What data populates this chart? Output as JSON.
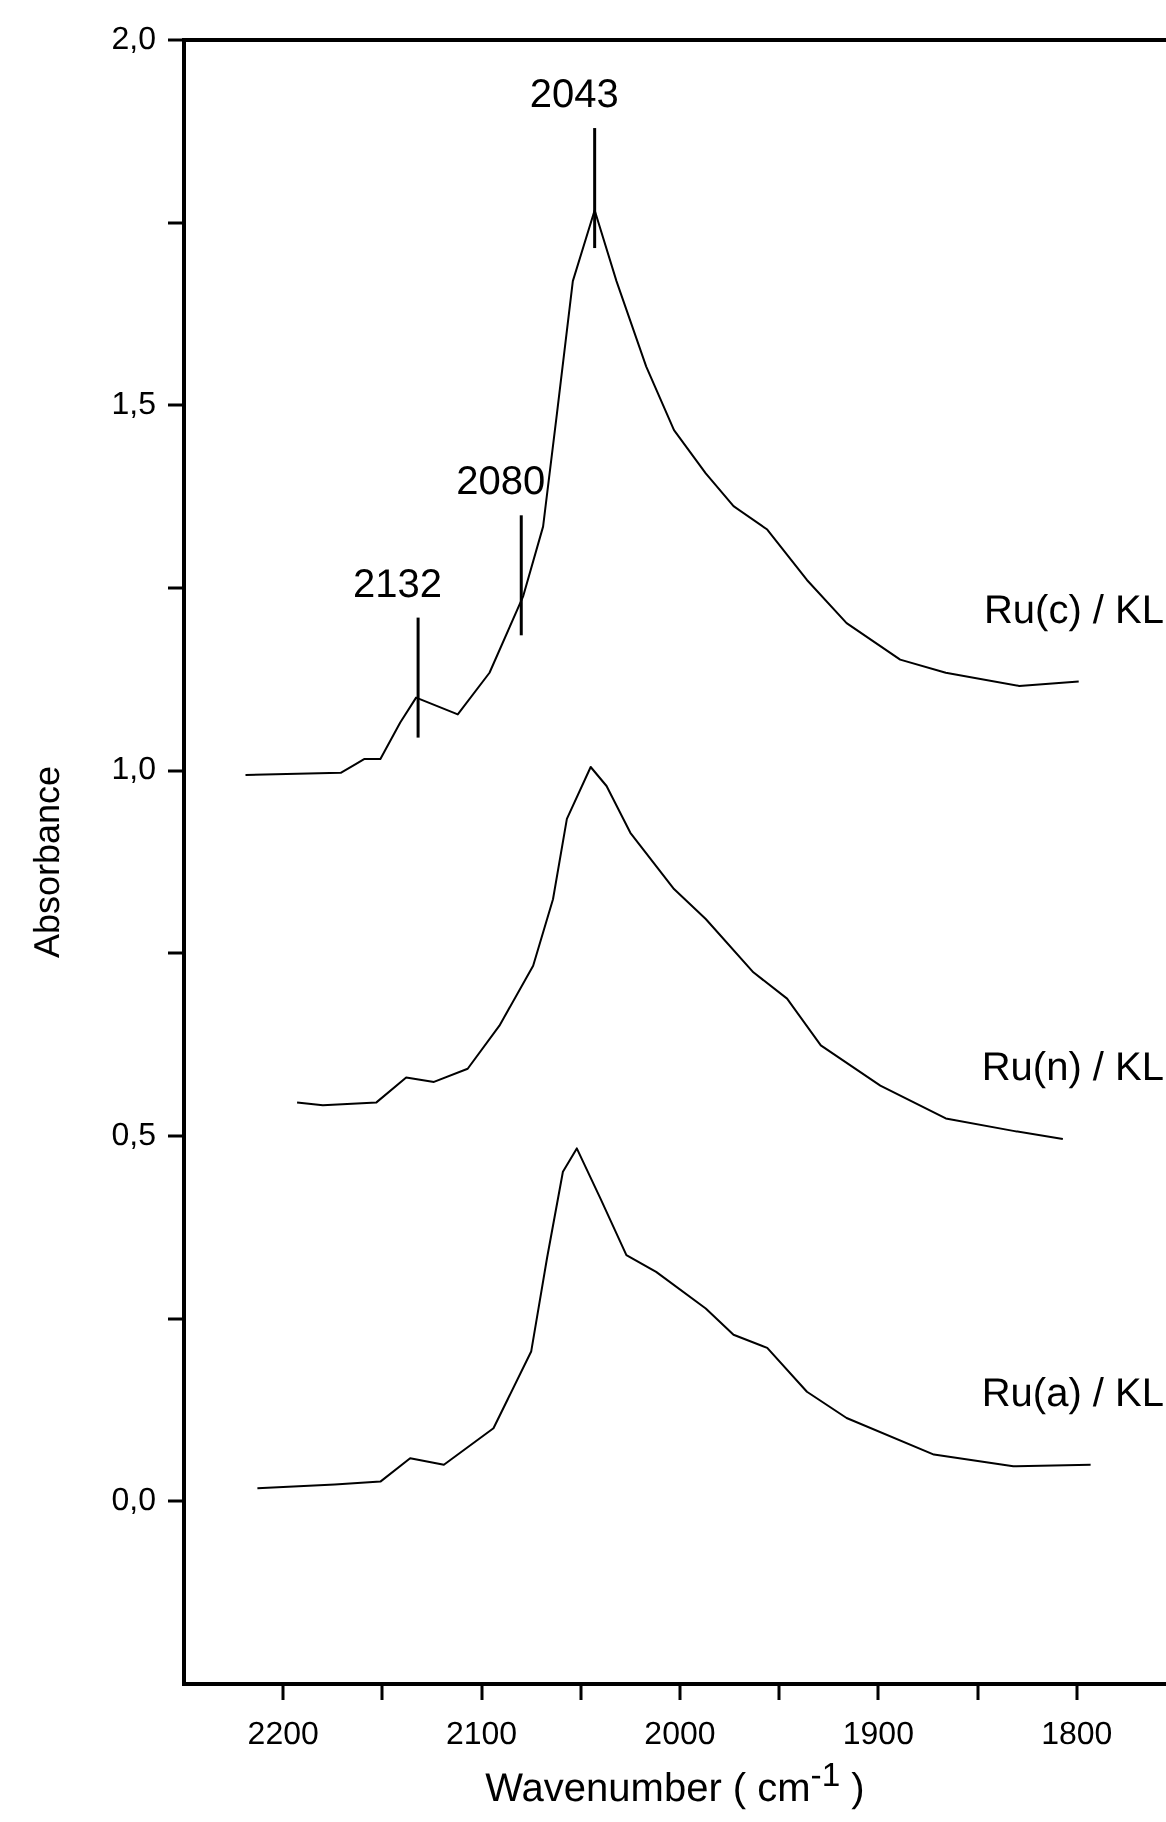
{
  "chart_data": {
    "type": "line",
    "xlabel": "Wavenumber ( cm$^{-1}$ )",
    "ylabel": "Absorbance",
    "xlim": [
      2250,
      1755
    ],
    "ylim": [
      -0.25,
      2.0
    ],
    "xticks": [
      2200,
      {
        "value": 2150,
        "label": null
      },
      2100,
      {
        "value": 2050,
        "label": null
      },
      2000,
      {
        "value": 1950,
        "label": null
      },
      1900,
      {
        "value": 1850,
        "label": null
      },
      1800
    ],
    "yticks": [
      {
        "value": 0,
        "label": "0,0"
      },
      {
        "value": 0.25,
        "label": null
      },
      {
        "value": 0.5,
        "label": "0,5"
      },
      {
        "value": 0.75,
        "label": null
      },
      {
        "value": 1,
        "label": "1,0"
      },
      {
        "value": 1.25,
        "label": null
      },
      {
        "value": 1.5,
        "label": "1,5"
      },
      {
        "value": 1.75,
        "label": null
      },
      {
        "value": 2,
        "label": "2,0"
      }
    ],
    "grid": false,
    "legend": false,
    "annotations": [
      {
        "text": "2132",
        "x": 2132,
        "y": 1.1
      },
      {
        "text": "2080",
        "x": 2080,
        "y": 1.24
      },
      {
        "text": "2043",
        "x": 2043,
        "y": 1.77
      }
    ],
    "series": [
      {
        "name": "Ru(c) / KL",
        "color": "#000000",
        "x": [
          2219,
          2171,
          2159,
          2151,
          2141,
          2133,
          2112,
          2096,
          2079,
          2069,
          2062,
          2054,
          2043,
          2032,
          2017,
          2003,
          1987,
          1973,
          1956,
          1936,
          1916,
          1889,
          1866,
          1829,
          1799
        ],
        "values": [
          0.994,
          0.997,
          1.016,
          1.016,
          1.066,
          1.1,
          1.077,
          1.134,
          1.239,
          1.334,
          1.489,
          1.67,
          1.767,
          1.67,
          1.553,
          1.466,
          1.407,
          1.362,
          1.33,
          1.261,
          1.202,
          1.152,
          1.134,
          1.116,
          1.122
        ]
      },
      {
        "name": "Ru(n) / KL",
        "color": "#000000",
        "x": [
          2193,
          2180,
          2153,
          2138,
          2124,
          2107,
          2091,
          2074,
          2064,
          2057,
          2045,
          2037,
          2025,
          2003,
          1987,
          1963,
          1946,
          1929,
          1899,
          1866,
          1832,
          1807
        ],
        "values": [
          0.546,
          0.542,
          0.546,
          0.58,
          0.574,
          0.592,
          0.651,
          0.733,
          0.824,
          0.934,
          1.005,
          0.979,
          0.915,
          0.838,
          0.797,
          0.724,
          0.688,
          0.624,
          0.569,
          0.524,
          0.507,
          0.496
        ]
      },
      {
        "name": "Ru(a) / KL",
        "color": "#000000",
        "x": [
          2213,
          2174,
          2151,
          2136,
          2119,
          2094,
          2075,
          2067,
          2059,
          2052,
          2040,
          2027,
          2012,
          1987,
          1973,
          1956,
          1936,
          1916,
          1872,
          1832,
          1793
        ],
        "values": [
          0.018,
          0.023,
          0.027,
          0.059,
          0.05,
          0.1,
          0.205,
          0.333,
          0.451,
          0.483,
          0.414,
          0.337,
          0.314,
          0.264,
          0.228,
          0.21,
          0.15,
          0.114,
          0.064,
          0.048,
          0.05
        ]
      }
    ]
  }
}
